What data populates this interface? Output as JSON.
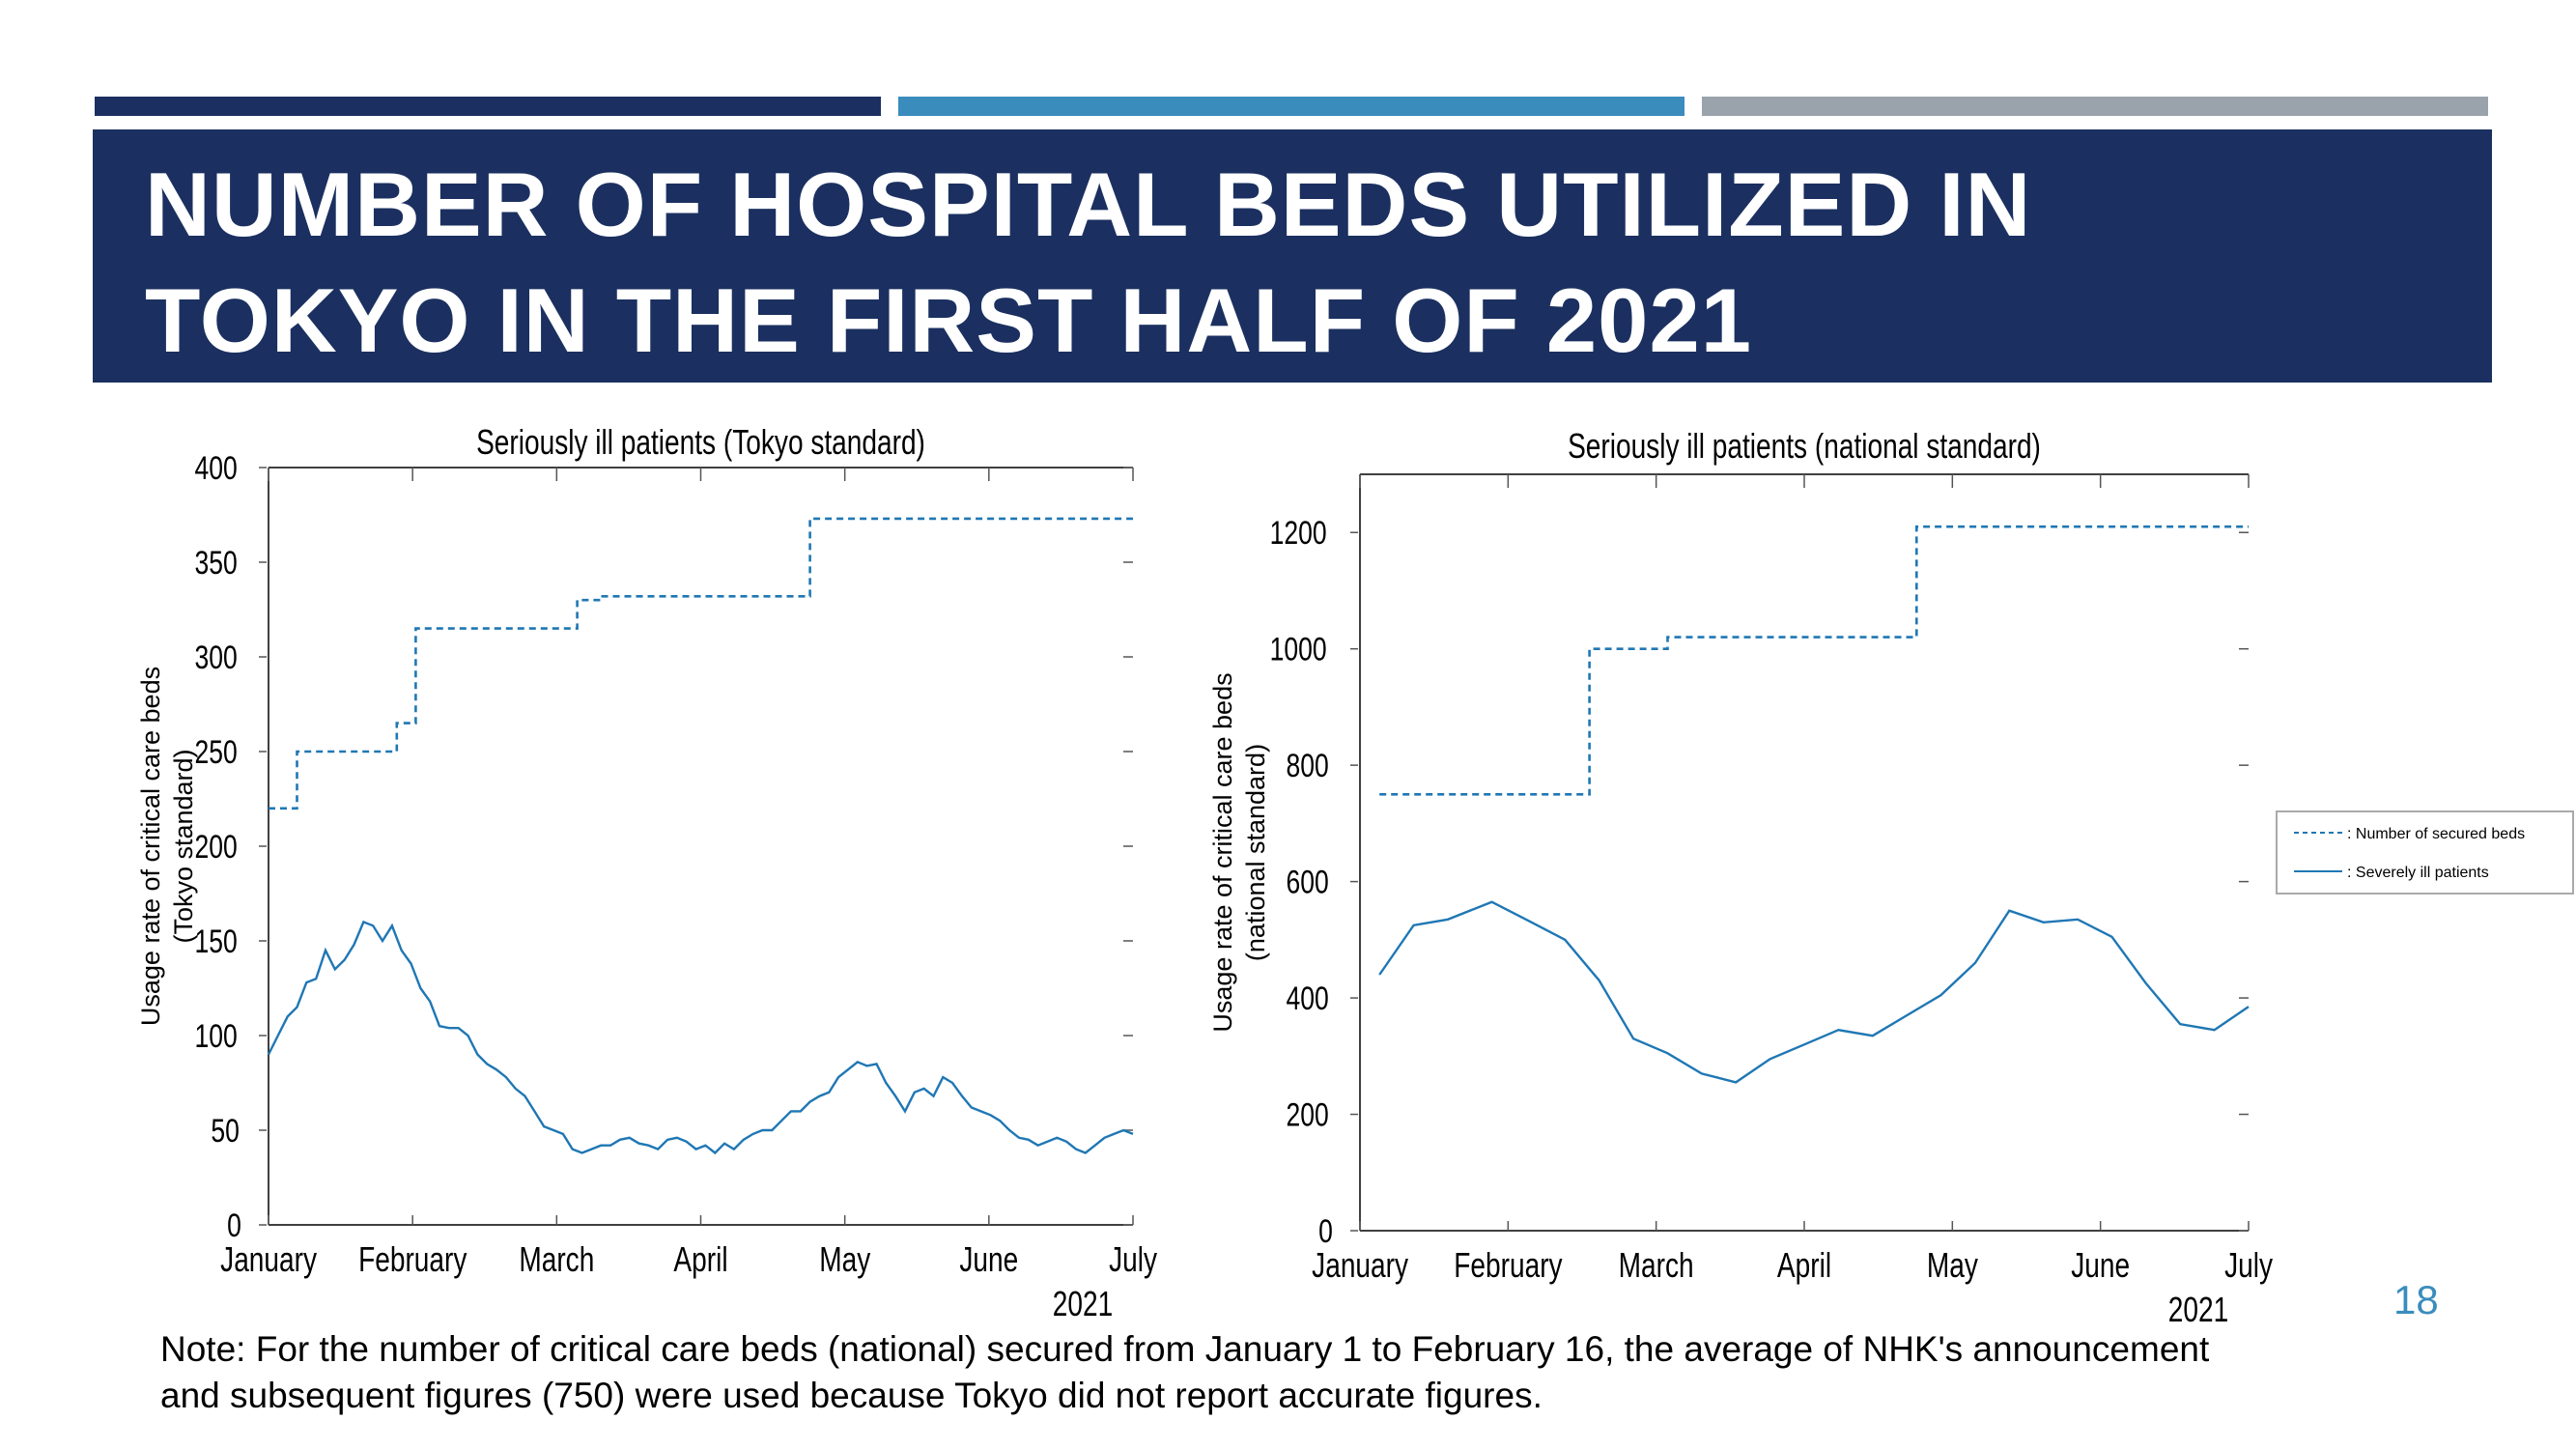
{
  "slide": {
    "title_lines": [
      "NUMBER OF HOSPITAL BEDS UTILIZED IN",
      "TOKYO IN THE FIRST HALF OF 2021"
    ],
    "note_lines": [
      "Note: For the number of critical care beds (national) secured from January 1 to February 16, the average of NHK's announcement",
      "and subsequent figures (750) were used because Tokyo did not report accurate figures."
    ],
    "page_number": "18",
    "colors": {
      "navy": "#1b3060",
      "steel_blue": "#3a8cbd",
      "gray": "#9aa2ab",
      "series": "#1f77b4"
    }
  },
  "chart_data": [
    {
      "type": "line",
      "title": "Seriously ill patients (Tokyo standard)",
      "ylabel_lines": [
        "Usage rate of critical care beds",
        "(Tokyo standard)"
      ],
      "x_ticks": [
        "January",
        "February",
        "March",
        "April",
        "May",
        "June",
        "July"
      ],
      "x_year_label": "2021",
      "xlim": [
        0,
        182
      ],
      "ylim": [
        0,
        400
      ],
      "y_ticks": [
        0,
        50,
        100,
        150,
        200,
        250,
        300,
        350,
        400
      ],
      "grid": false,
      "series": [
        {
          "style": "dashed",
          "x": [
            0,
            6,
            6,
            27,
            27,
            31,
            31,
            45,
            45,
            48,
            48,
            65,
            65,
            70,
            70,
            114,
            114,
            182
          ],
          "y": [
            220,
            220,
            250,
            250,
            265,
            265,
            315,
            315,
            315,
            315,
            315,
            315,
            330,
            330,
            332,
            332,
            373,
            373
          ]
        },
        {
          "style": "solid",
          "x": [
            0,
            2,
            4,
            6,
            8,
            10,
            12,
            14,
            16,
            18,
            20,
            22,
            24,
            26,
            28,
            30,
            32,
            34,
            36,
            38,
            40,
            42,
            44,
            46,
            48,
            50,
            52,
            54,
            56,
            58,
            60,
            62,
            64,
            66,
            68,
            70,
            72,
            74,
            76,
            78,
            80,
            82,
            84,
            86,
            88,
            90,
            92,
            94,
            96,
            98,
            100,
            102,
            104,
            106,
            108,
            110,
            112,
            114,
            116,
            118,
            120,
            122,
            124,
            126,
            128,
            130,
            132,
            134,
            136,
            138,
            140,
            142,
            144,
            146,
            148,
            150,
            152,
            154,
            156,
            158,
            160,
            162,
            164,
            166,
            168,
            170,
            172,
            174,
            176,
            178,
            180,
            182
          ],
          "y": [
            90,
            100,
            110,
            115,
            128,
            130,
            145,
            135,
            140,
            148,
            160,
            158,
            150,
            158,
            145,
            138,
            125,
            118,
            105,
            104,
            104,
            100,
            90,
            85,
            82,
            78,
            72,
            68,
            60,
            52,
            50,
            48,
            40,
            38,
            40,
            42,
            42,
            45,
            46,
            43,
            42,
            40,
            45,
            46,
            44,
            40,
            42,
            38,
            43,
            40,
            45,
            48,
            50,
            50,
            55,
            60,
            60,
            65,
            68,
            70,
            78,
            82,
            86,
            84,
            85,
            75,
            68,
            60,
            70,
            72,
            68,
            78,
            75,
            68,
            62,
            60,
            58,
            55,
            50,
            46,
            45,
            42,
            44,
            46,
            44,
            40,
            38,
            42,
            46,
            48,
            50,
            48
          ]
        }
      ]
    },
    {
      "type": "line",
      "title": "Seriously ill patients (national standard)",
      "ylabel_lines": [
        "Usage rate of critical care beds",
        "(national standard)"
      ],
      "x_ticks": [
        "January",
        "February",
        "March",
        "April",
        "May",
        "June",
        "July"
      ],
      "x_year_label": "2021",
      "xlim": [
        0,
        182
      ],
      "ylim": [
        0,
        1300
      ],
      "y_ticks": [
        0,
        200,
        400,
        600,
        800,
        1000,
        1200
      ],
      "grid": false,
      "legend": {
        "placement": "right",
        "entries": [
          {
            "label": "Number of secured beds",
            "style": "dashed"
          },
          {
            "label": "Severely ill patients",
            "style": "solid"
          }
        ]
      },
      "series": [
        {
          "style": "dashed",
          "x": [
            4,
            47,
            47,
            63,
            63,
            114,
            114,
            182
          ],
          "y": [
            750,
            750,
            1000,
            1000,
            1020,
            1020,
            1210,
            1210
          ]
        },
        {
          "style": "solid",
          "x": [
            4,
            11,
            18,
            27,
            34,
            42,
            49,
            56,
            63,
            70,
            77,
            84,
            91,
            98,
            105,
            112,
            119,
            126,
            133,
            140,
            147,
            154,
            161,
            168,
            175,
            182
          ],
          "y": [
            440,
            525,
            535,
            565,
            535,
            500,
            430,
            330,
            305,
            270,
            255,
            295,
            320,
            345,
            335,
            370,
            405,
            460,
            550,
            530,
            535,
            505,
            425,
            355,
            345,
            385
          ]
        }
      ]
    }
  ]
}
